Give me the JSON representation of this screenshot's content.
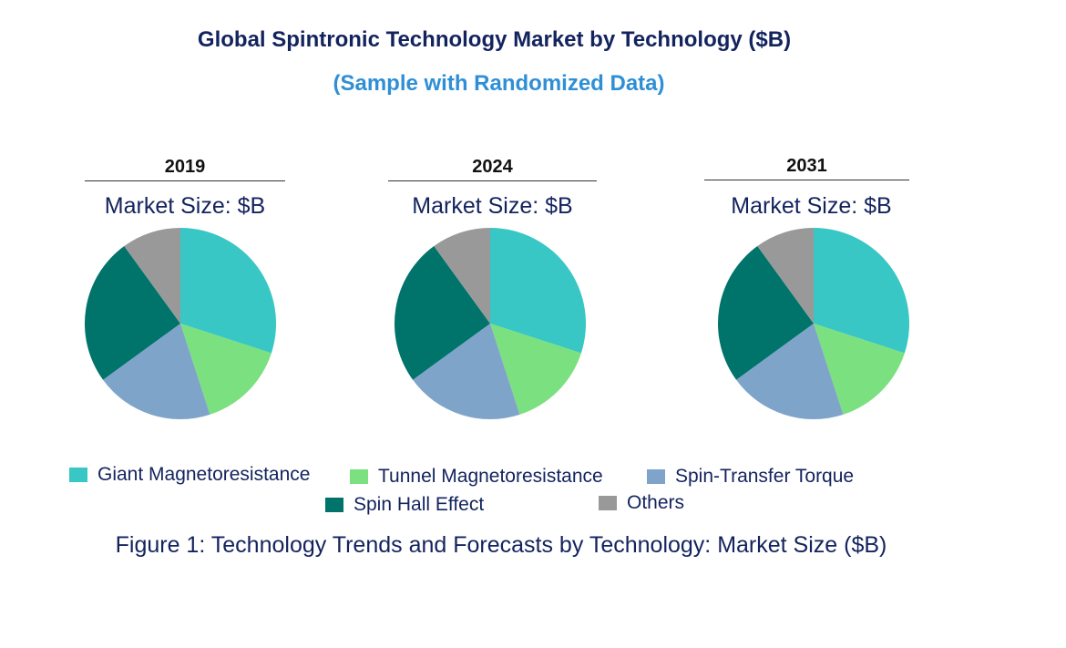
{
  "chart_data": {
    "type": "pie",
    "title": "Global Spintronic Technology Market by Technology ($B)",
    "subtitle": "(Sample with Randomized Data)",
    "categories": [
      "Giant Magnetoresistance",
      "Tunnel Magnetoresistance",
      "Spin-Transfer Torque",
      "Spin Hall Effect",
      "Others"
    ],
    "colors": [
      "#38c7c5",
      "#7be07f",
      "#7fa4c9",
      "#00736a",
      "#999999"
    ],
    "pies": [
      {
        "year": "2019",
        "label": "Market Size: $B",
        "values": [
          30,
          15,
          20,
          25,
          10
        ]
      },
      {
        "year": "2024",
        "label": "Market Size: $B",
        "values": [
          30,
          15,
          20,
          25,
          10
        ]
      },
      {
        "year": "2031",
        "label": "Market Size: $B",
        "values": [
          30,
          15,
          20,
          25,
          10
        ]
      }
    ],
    "legend_position": "bottom",
    "caption": "Figure 1: Technology Trends and Forecasts by Technology: Market Size ($B)"
  }
}
